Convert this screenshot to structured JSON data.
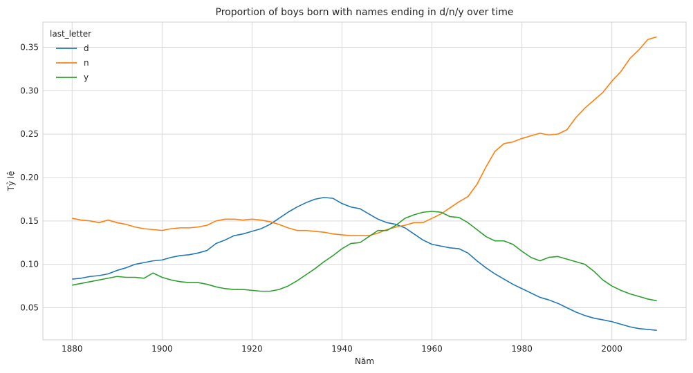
{
  "chart_data": {
    "type": "line",
    "title": "Proportion of boys born with names ending in d/n/y over time",
    "xlabel": "Năm",
    "ylabel": "Tỷ lệ",
    "xlim": [
      1873.5,
      2016.5
    ],
    "ylim": [
      0.013,
      0.379
    ],
    "xticks": [
      1880,
      1900,
      1920,
      1940,
      1960,
      1980,
      2000
    ],
    "yticks": [
      0.05,
      0.1,
      0.15,
      0.2,
      0.25,
      0.3,
      0.35
    ],
    "ytick_labels": [
      "0.05",
      "0.10",
      "0.15",
      "0.20",
      "0.25",
      "0.30",
      "0.35"
    ],
    "grid": true,
    "legend": {
      "title": "last_letter",
      "placement": "top-left"
    },
    "series": [
      {
        "name": "d",
        "color": "#1f77b4",
        "points": [
          [
            1880,
            0.083
          ],
          [
            1882,
            0.084
          ],
          [
            1884,
            0.086
          ],
          [
            1886,
            0.087
          ],
          [
            1888,
            0.089
          ],
          [
            1890,
            0.093
          ],
          [
            1892,
            0.096
          ],
          [
            1894,
            0.1
          ],
          [
            1896,
            0.102
          ],
          [
            1898,
            0.104
          ],
          [
            1900,
            0.105
          ],
          [
            1902,
            0.108
          ],
          [
            1904,
            0.11
          ],
          [
            1906,
            0.111
          ],
          [
            1908,
            0.113
          ],
          [
            1910,
            0.116
          ],
          [
            1912,
            0.124
          ],
          [
            1914,
            0.128
          ],
          [
            1916,
            0.133
          ],
          [
            1918,
            0.135
          ],
          [
            1920,
            0.138
          ],
          [
            1922,
            0.141
          ],
          [
            1924,
            0.146
          ],
          [
            1926,
            0.153
          ],
          [
            1928,
            0.16
          ],
          [
            1930,
            0.166
          ],
          [
            1932,
            0.171
          ],
          [
            1934,
            0.175
          ],
          [
            1936,
            0.177
          ],
          [
            1938,
            0.176
          ],
          [
            1940,
            0.17
          ],
          [
            1942,
            0.166
          ],
          [
            1944,
            0.164
          ],
          [
            1946,
            0.158
          ],
          [
            1948,
            0.152
          ],
          [
            1950,
            0.148
          ],
          [
            1952,
            0.146
          ],
          [
            1954,
            0.142
          ],
          [
            1956,
            0.135
          ],
          [
            1958,
            0.128
          ],
          [
            1960,
            0.123
          ],
          [
            1962,
            0.121
          ],
          [
            1964,
            0.119
          ],
          [
            1966,
            0.118
          ],
          [
            1968,
            0.113
          ],
          [
            1970,
            0.104
          ],
          [
            1972,
            0.096
          ],
          [
            1974,
            0.089
          ],
          [
            1976,
            0.083
          ],
          [
            1978,
            0.077
          ],
          [
            1980,
            0.072
          ],
          [
            1982,
            0.067
          ],
          [
            1984,
            0.062
          ],
          [
            1986,
            0.059
          ],
          [
            1988,
            0.055
          ],
          [
            1990,
            0.05
          ],
          [
            1992,
            0.045
          ],
          [
            1994,
            0.041
          ],
          [
            1996,
            0.038
          ],
          [
            1998,
            0.036
          ],
          [
            2000,
            0.034
          ],
          [
            2002,
            0.031
          ],
          [
            2004,
            0.028
          ],
          [
            2006,
            0.026
          ],
          [
            2008,
            0.025
          ],
          [
            2010,
            0.024
          ]
        ]
      },
      {
        "name": "n",
        "color": "#ff7f0e",
        "points": [
          [
            1880,
            0.153
          ],
          [
            1882,
            0.151
          ],
          [
            1884,
            0.15
          ],
          [
            1886,
            0.148
          ],
          [
            1888,
            0.151
          ],
          [
            1890,
            0.148
          ],
          [
            1892,
            0.146
          ],
          [
            1894,
            0.143
          ],
          [
            1896,
            0.141
          ],
          [
            1898,
            0.14
          ],
          [
            1900,
            0.139
          ],
          [
            1902,
            0.141
          ],
          [
            1904,
            0.142
          ],
          [
            1906,
            0.142
          ],
          [
            1908,
            0.143
          ],
          [
            1910,
            0.145
          ],
          [
            1912,
            0.15
          ],
          [
            1914,
            0.152
          ],
          [
            1916,
            0.152
          ],
          [
            1918,
            0.151
          ],
          [
            1920,
            0.152
          ],
          [
            1922,
            0.151
          ],
          [
            1924,
            0.149
          ],
          [
            1926,
            0.146
          ],
          [
            1928,
            0.142
          ],
          [
            1930,
            0.139
          ],
          [
            1932,
            0.139
          ],
          [
            1934,
            0.138
          ],
          [
            1936,
            0.137
          ],
          [
            1938,
            0.135
          ],
          [
            1940,
            0.134
          ],
          [
            1942,
            0.133
          ],
          [
            1944,
            0.133
          ],
          [
            1946,
            0.133
          ],
          [
            1948,
            0.136
          ],
          [
            1950,
            0.14
          ],
          [
            1952,
            0.143
          ],
          [
            1954,
            0.145
          ],
          [
            1956,
            0.148
          ],
          [
            1958,
            0.148
          ],
          [
            1960,
            0.153
          ],
          [
            1962,
            0.158
          ],
          [
            1964,
            0.165
          ],
          [
            1966,
            0.172
          ],
          [
            1968,
            0.178
          ],
          [
            1970,
            0.192
          ],
          [
            1972,
            0.212
          ],
          [
            1974,
            0.23
          ],
          [
            1976,
            0.239
          ],
          [
            1978,
            0.241
          ],
          [
            1980,
            0.245
          ],
          [
            1982,
            0.248
          ],
          [
            1984,
            0.251
          ],
          [
            1986,
            0.249
          ],
          [
            1988,
            0.25
          ],
          [
            1990,
            0.255
          ],
          [
            1992,
            0.269
          ],
          [
            1994,
            0.28
          ],
          [
            1996,
            0.289
          ],
          [
            1998,
            0.298
          ],
          [
            2000,
            0.311
          ],
          [
            2002,
            0.322
          ],
          [
            2004,
            0.337
          ],
          [
            2006,
            0.347
          ],
          [
            2008,
            0.359
          ],
          [
            2010,
            0.362
          ]
        ]
      },
      {
        "name": "y",
        "color": "#2ca02c",
        "points": [
          [
            1880,
            0.076
          ],
          [
            1882,
            0.078
          ],
          [
            1884,
            0.08
          ],
          [
            1886,
            0.082
          ],
          [
            1888,
            0.084
          ],
          [
            1890,
            0.086
          ],
          [
            1892,
            0.085
          ],
          [
            1894,
            0.085
          ],
          [
            1896,
            0.084
          ],
          [
            1898,
            0.09
          ],
          [
            1900,
            0.085
          ],
          [
            1902,
            0.082
          ],
          [
            1904,
            0.08
          ],
          [
            1906,
            0.079
          ],
          [
            1908,
            0.079
          ],
          [
            1910,
            0.077
          ],
          [
            1912,
            0.074
          ],
          [
            1914,
            0.072
          ],
          [
            1916,
            0.071
          ],
          [
            1918,
            0.071
          ],
          [
            1920,
            0.07
          ],
          [
            1922,
            0.069
          ],
          [
            1924,
            0.069
          ],
          [
            1926,
            0.071
          ],
          [
            1928,
            0.075
          ],
          [
            1930,
            0.081
          ],
          [
            1932,
            0.088
          ],
          [
            1934,
            0.095
          ],
          [
            1936,
            0.103
          ],
          [
            1938,
            0.11
          ],
          [
            1940,
            0.118
          ],
          [
            1942,
            0.124
          ],
          [
            1944,
            0.125
          ],
          [
            1946,
            0.132
          ],
          [
            1948,
            0.139
          ],
          [
            1950,
            0.139
          ],
          [
            1952,
            0.145
          ],
          [
            1954,
            0.153
          ],
          [
            1956,
            0.157
          ],
          [
            1958,
            0.16
          ],
          [
            1960,
            0.161
          ],
          [
            1962,
            0.16
          ],
          [
            1964,
            0.155
          ],
          [
            1966,
            0.154
          ],
          [
            1968,
            0.148
          ],
          [
            1970,
            0.14
          ],
          [
            1972,
            0.132
          ],
          [
            1974,
            0.127
          ],
          [
            1976,
            0.127
          ],
          [
            1978,
            0.123
          ],
          [
            1980,
            0.115
          ],
          [
            1982,
            0.108
          ],
          [
            1984,
            0.104
          ],
          [
            1986,
            0.108
          ],
          [
            1988,
            0.109
          ],
          [
            1990,
            0.106
          ],
          [
            1992,
            0.103
          ],
          [
            1994,
            0.1
          ],
          [
            1996,
            0.092
          ],
          [
            1998,
            0.082
          ],
          [
            2000,
            0.075
          ],
          [
            2002,
            0.07
          ],
          [
            2004,
            0.066
          ],
          [
            2006,
            0.063
          ],
          [
            2008,
            0.06
          ],
          [
            2010,
            0.058
          ]
        ]
      }
    ]
  }
}
